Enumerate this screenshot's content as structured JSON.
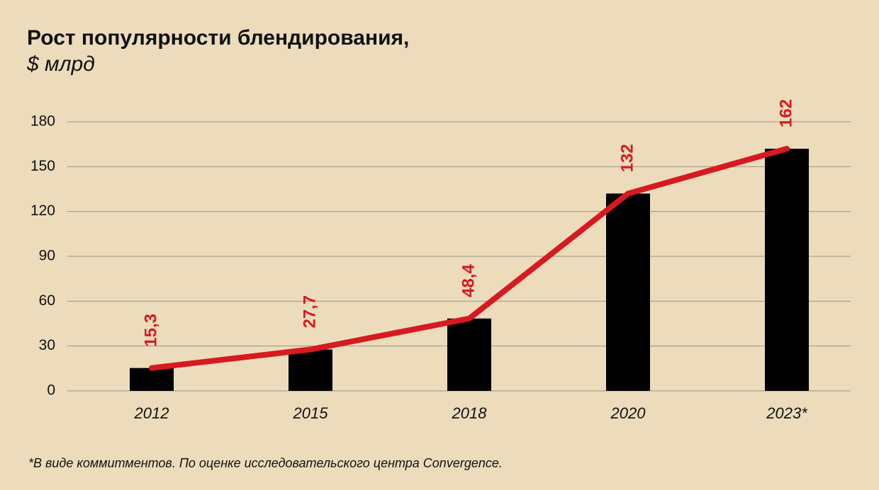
{
  "chart_data": {
    "type": "bar-line",
    "title": "Рост популярности блендирования,",
    "subtitle": "$ млрд",
    "note": "*В виде коммитментов. По оценке исследовательского центра Convergence.",
    "categories": [
      "2012",
      "2015",
      "2018",
      "2020",
      "2023*"
    ],
    "values": [
      15.3,
      27.7,
      48.4,
      132,
      162
    ],
    "value_labels": [
      "15,3",
      "27,7",
      "48,4",
      "132",
      "162"
    ],
    "bar_color": "#000000",
    "line_color": "#d71920",
    "ylim": [
      0,
      180
    ],
    "yticks": [
      0,
      30,
      60,
      90,
      120,
      150,
      180
    ],
    "grid": true
  }
}
